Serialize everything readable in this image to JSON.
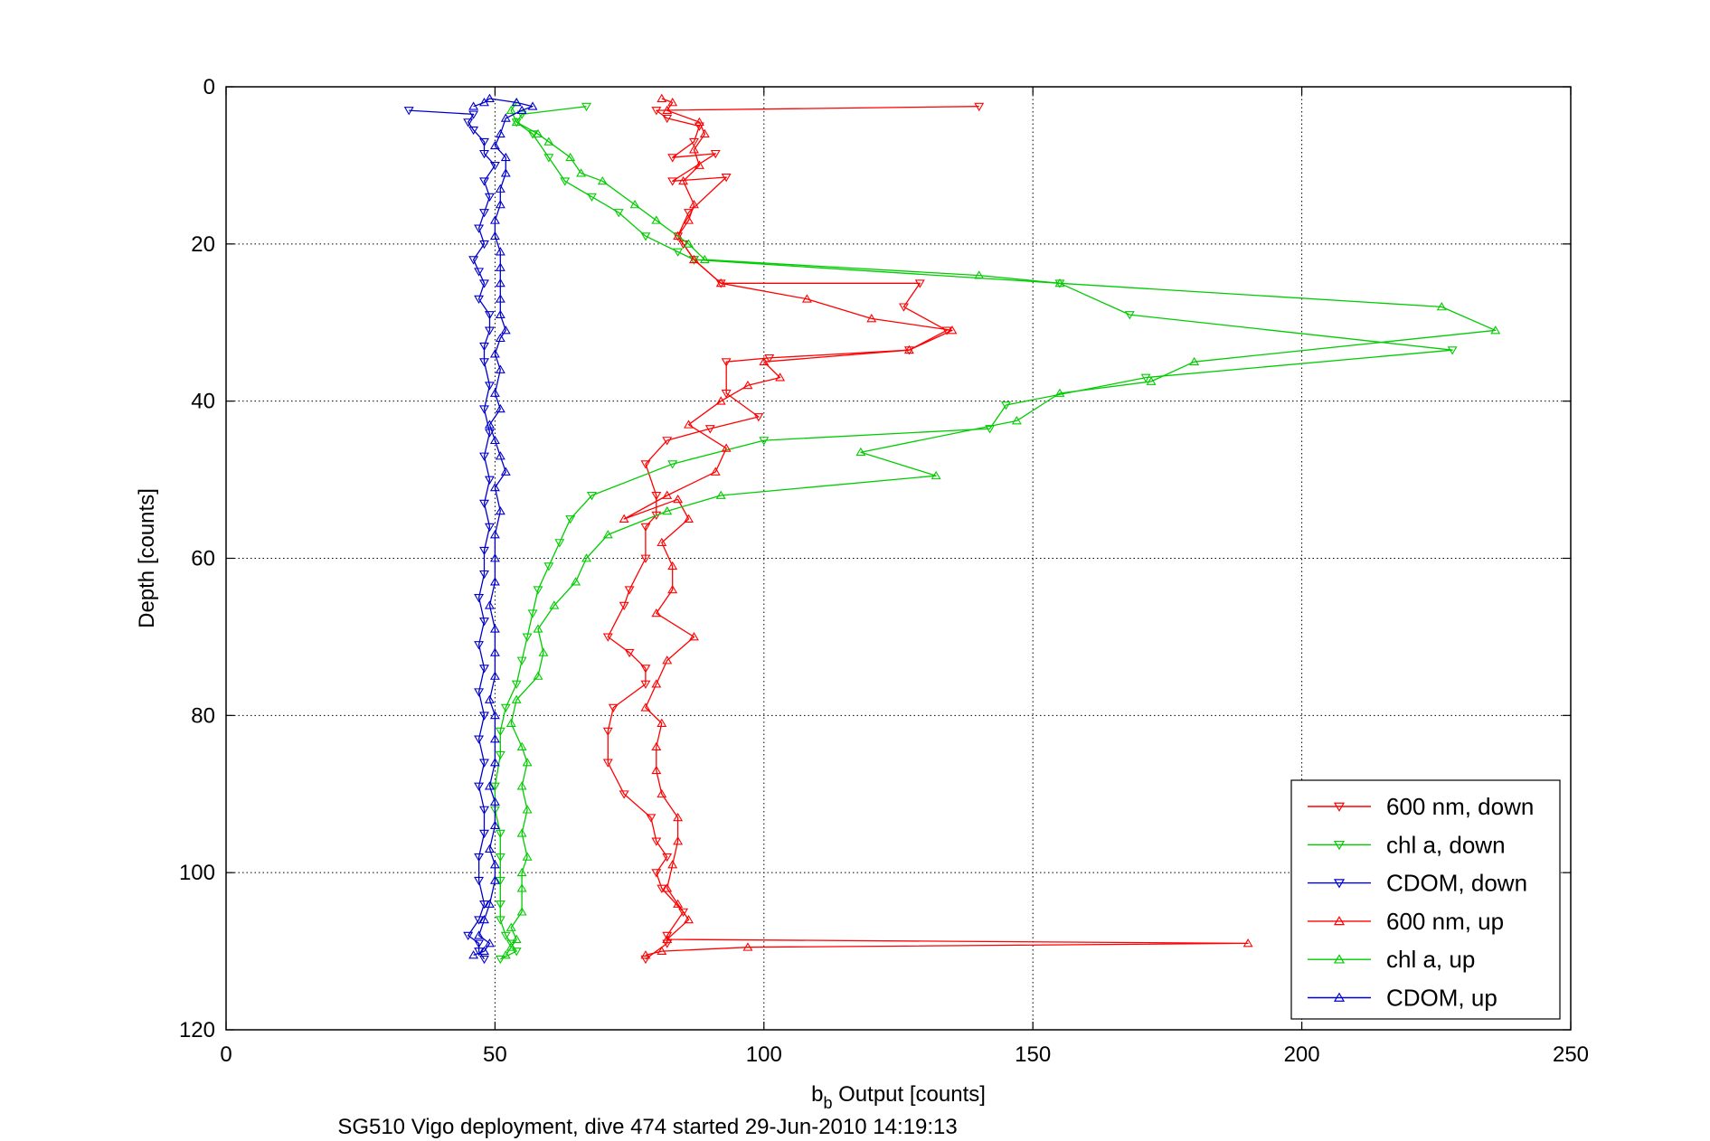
{
  "chart_data": {
    "type": "line",
    "xlabel_base": "b",
    "xlabel_sub": "b",
    "xlabel_rest": " Output [counts]",
    "ylabel": "Depth [counts]",
    "caption": "SG510 Vigo deployment, dive 474 started 29-Jun-2010 14:19:13",
    "xlim": [
      0,
      250
    ],
    "ylim": [
      0,
      120
    ],
    "y_reversed": true,
    "grid": true,
    "legend_position": "bottom-right",
    "x_ticks": [
      0,
      50,
      100,
      150,
      200,
      250
    ],
    "y_ticks": [
      0,
      20,
      40,
      60,
      80,
      100,
      120
    ],
    "series": [
      {
        "name": "600 nm, down",
        "color": "#ff0000",
        "marker": "triangle-down",
        "points": [
          [
            140,
            2.5
          ],
          [
            80,
            3
          ],
          [
            82,
            4
          ],
          [
            88,
            5
          ],
          [
            87,
            7
          ],
          [
            83,
            9
          ],
          [
            91,
            8.5
          ],
          [
            83,
            12
          ],
          [
            93,
            11.5
          ],
          [
            86,
            16
          ],
          [
            84,
            19
          ],
          [
            85,
            20
          ],
          [
            87,
            22
          ],
          [
            92,
            25
          ],
          [
            129,
            25
          ],
          [
            126,
            28
          ],
          [
            134,
            31
          ],
          [
            127,
            33.5
          ],
          [
            101,
            34.5
          ],
          [
            93,
            35
          ],
          [
            93,
            39
          ],
          [
            99,
            42
          ],
          [
            90,
            43.5
          ],
          [
            82,
            45
          ],
          [
            78,
            48
          ],
          [
            80,
            52
          ],
          [
            80,
            54.5
          ],
          [
            78,
            56
          ],
          [
            78,
            60
          ],
          [
            75,
            64
          ],
          [
            74,
            66
          ],
          [
            71,
            70
          ],
          [
            75,
            72
          ],
          [
            78,
            74
          ],
          [
            78,
            76
          ],
          [
            72,
            79
          ],
          [
            71,
            82
          ],
          [
            71,
            86
          ],
          [
            74,
            90
          ],
          [
            79,
            93
          ],
          [
            80,
            96
          ],
          [
            82,
            98
          ],
          [
            80,
            100
          ],
          [
            81,
            102
          ],
          [
            85,
            105
          ],
          [
            82,
            108
          ],
          [
            82,
            109
          ],
          [
            78,
            111
          ]
        ]
      },
      {
        "name": "chl a, down",
        "color": "#00cc00",
        "marker": "triangle-down",
        "points": [
          [
            67,
            2.5
          ],
          [
            55,
            3.5
          ],
          [
            54,
            4.5
          ],
          [
            57,
            6
          ],
          [
            60,
            9
          ],
          [
            63,
            12
          ],
          [
            68,
            14
          ],
          [
            73,
            16
          ],
          [
            78,
            19
          ],
          [
            84,
            21
          ],
          [
            87,
            22
          ],
          [
            155,
            25
          ],
          [
            168,
            29
          ],
          [
            228,
            33.5
          ],
          [
            171,
            37
          ],
          [
            145,
            40.5
          ],
          [
            142,
            43.5
          ],
          [
            100,
            45
          ],
          [
            83,
            48
          ],
          [
            68,
            52
          ],
          [
            64,
            55
          ],
          [
            62,
            58
          ],
          [
            60,
            61
          ],
          [
            58,
            64
          ],
          [
            57,
            67
          ],
          [
            56,
            70
          ],
          [
            55,
            73
          ],
          [
            54,
            76
          ],
          [
            52,
            79
          ],
          [
            51,
            82
          ],
          [
            51,
            85
          ],
          [
            50,
            89
          ],
          [
            50,
            92
          ],
          [
            51,
            95
          ],
          [
            51,
            98
          ],
          [
            51,
            101
          ],
          [
            51,
            104
          ],
          [
            51,
            106
          ],
          [
            52,
            108
          ],
          [
            53,
            109
          ],
          [
            54,
            110
          ],
          [
            51,
            111
          ]
        ]
      },
      {
        "name": "CDOM, down",
        "color": "#0000cc",
        "marker": "triangle-down",
        "points": [
          [
            34,
            3
          ],
          [
            46,
            3.5
          ],
          [
            45,
            4.5
          ],
          [
            46,
            5.5
          ],
          [
            48,
            7
          ],
          [
            48,
            8.5
          ],
          [
            50,
            10
          ],
          [
            48,
            12
          ],
          [
            49,
            14
          ],
          [
            48,
            16
          ],
          [
            47,
            18
          ],
          [
            48,
            20
          ],
          [
            46,
            22
          ],
          [
            47,
            23.5
          ],
          [
            48,
            25
          ],
          [
            47,
            27
          ],
          [
            49,
            29
          ],
          [
            49,
            31
          ],
          [
            48,
            33
          ],
          [
            48,
            35
          ],
          [
            49,
            38
          ],
          [
            48,
            41
          ],
          [
            49,
            44
          ],
          [
            48,
            47
          ],
          [
            49,
            50
          ],
          [
            48,
            53
          ],
          [
            49,
            56
          ],
          [
            48,
            59
          ],
          [
            48,
            62
          ],
          [
            47,
            65
          ],
          [
            48,
            68
          ],
          [
            47,
            71
          ],
          [
            48,
            74
          ],
          [
            47,
            77
          ],
          [
            48,
            80
          ],
          [
            47,
            83
          ],
          [
            48,
            86
          ],
          [
            47,
            89
          ],
          [
            48,
            92
          ],
          [
            48,
            95
          ],
          [
            47,
            98
          ],
          [
            47,
            101
          ],
          [
            48,
            104
          ],
          [
            47,
            106
          ],
          [
            45,
            108
          ],
          [
            47,
            109
          ],
          [
            47,
            110
          ],
          [
            48,
            111
          ]
        ]
      },
      {
        "name": "600 nm, up",
        "color": "#ff0000",
        "marker": "triangle-up",
        "points": [
          [
            78,
            110.5
          ],
          [
            81,
            110
          ],
          [
            97,
            109.5
          ],
          [
            190,
            109
          ],
          [
            82,
            108.5
          ],
          [
            86,
            106
          ],
          [
            84,
            104
          ],
          [
            82,
            102
          ],
          [
            83,
            99
          ],
          [
            84,
            96
          ],
          [
            84,
            93
          ],
          [
            81,
            90
          ],
          [
            80,
            87
          ],
          [
            80,
            84
          ],
          [
            81,
            81
          ],
          [
            78,
            79
          ],
          [
            80,
            76
          ],
          [
            82,
            73
          ],
          [
            87,
            70
          ],
          [
            80,
            67
          ],
          [
            83,
            64
          ],
          [
            83,
            61
          ],
          [
            81,
            58
          ],
          [
            86,
            55
          ],
          [
            84,
            52.5
          ],
          [
            74,
            55
          ],
          [
            82,
            52
          ],
          [
            91,
            49
          ],
          [
            93,
            46
          ],
          [
            86,
            43
          ],
          [
            92,
            40
          ],
          [
            97,
            38
          ],
          [
            103,
            37
          ],
          [
            100,
            35
          ],
          [
            127,
            33.5
          ],
          [
            135,
            31
          ],
          [
            120,
            29.5
          ],
          [
            108,
            27
          ],
          [
            92,
            25
          ],
          [
            87,
            22
          ],
          [
            84,
            19
          ],
          [
            86,
            17
          ],
          [
            87,
            15
          ],
          [
            85,
            12
          ],
          [
            88,
            10
          ],
          [
            87,
            8
          ],
          [
            89,
            6
          ],
          [
            88,
            4.5
          ],
          [
            82,
            3
          ],
          [
            83,
            2
          ],
          [
            81,
            1.5
          ]
        ]
      },
      {
        "name": "chl a, up",
        "color": "#00cc00",
        "marker": "triangle-up",
        "points": [
          [
            52,
            110.5
          ],
          [
            53,
            109.5
          ],
          [
            54,
            108.5
          ],
          [
            53,
            107
          ],
          [
            55,
            105
          ],
          [
            55,
            102
          ],
          [
            55,
            100
          ],
          [
            56,
            98
          ],
          [
            55,
            95
          ],
          [
            56,
            92
          ],
          [
            55,
            89
          ],
          [
            56,
            86
          ],
          [
            55,
            84
          ],
          [
            53,
            81
          ],
          [
            54,
            78
          ],
          [
            58,
            75
          ],
          [
            59,
            72
          ],
          [
            58,
            69
          ],
          [
            61,
            66
          ],
          [
            65,
            63
          ],
          [
            67,
            60
          ],
          [
            71,
            57
          ],
          [
            82,
            54
          ],
          [
            92,
            52
          ],
          [
            132,
            49.5
          ],
          [
            118,
            46.5
          ],
          [
            147,
            42.5
          ],
          [
            155,
            39
          ],
          [
            172,
            37.5
          ],
          [
            180,
            35
          ],
          [
            236,
            31
          ],
          [
            226,
            28
          ],
          [
            155,
            25
          ],
          [
            140,
            24
          ],
          [
            89,
            22
          ],
          [
            86,
            20
          ],
          [
            80,
            17
          ],
          [
            76,
            15
          ],
          [
            70,
            12
          ],
          [
            66,
            11
          ],
          [
            64,
            9
          ],
          [
            60,
            7
          ],
          [
            58,
            6
          ],
          [
            54,
            4.5
          ],
          [
            53,
            3
          ],
          [
            54,
            2
          ]
        ]
      },
      {
        "name": "CDOM, up",
        "color": "#0000cc",
        "marker": "triangle-up",
        "points": [
          [
            46,
            110.5
          ],
          [
            48,
            110
          ],
          [
            49,
            109
          ],
          [
            47,
            108
          ],
          [
            48,
            106
          ],
          [
            49,
            104
          ],
          [
            50,
            101
          ],
          [
            50,
            99
          ],
          [
            49,
            97
          ],
          [
            50,
            94
          ],
          [
            50,
            91
          ],
          [
            49,
            89
          ],
          [
            50,
            86
          ],
          [
            50,
            83
          ],
          [
            50,
            80
          ],
          [
            49,
            78
          ],
          [
            50,
            75
          ],
          [
            50,
            72
          ],
          [
            50,
            69
          ],
          [
            49,
            66
          ],
          [
            50,
            63
          ],
          [
            50,
            60
          ],
          [
            50,
            57
          ],
          [
            51,
            54
          ],
          [
            50,
            51
          ],
          [
            52,
            49
          ],
          [
            51,
            47
          ],
          [
            50,
            45
          ],
          [
            49,
            43
          ],
          [
            51,
            41
          ],
          [
            50,
            39
          ],
          [
            51,
            36
          ],
          [
            50,
            34
          ],
          [
            51,
            32
          ],
          [
            52,
            31
          ],
          [
            51,
            29
          ],
          [
            51,
            27
          ],
          [
            51,
            25
          ],
          [
            51,
            23
          ],
          [
            51,
            21
          ],
          [
            50,
            19
          ],
          [
            50,
            17
          ],
          [
            51,
            15
          ],
          [
            51,
            13
          ],
          [
            52,
            11
          ],
          [
            52,
            9
          ],
          [
            50,
            7.5
          ],
          [
            51,
            6
          ],
          [
            52,
            4
          ],
          [
            55,
            3
          ],
          [
            57,
            2.5
          ],
          [
            54,
            2
          ],
          [
            49,
            1.5
          ],
          [
            48,
            2
          ],
          [
            46,
            2.5
          ]
        ]
      }
    ]
  }
}
